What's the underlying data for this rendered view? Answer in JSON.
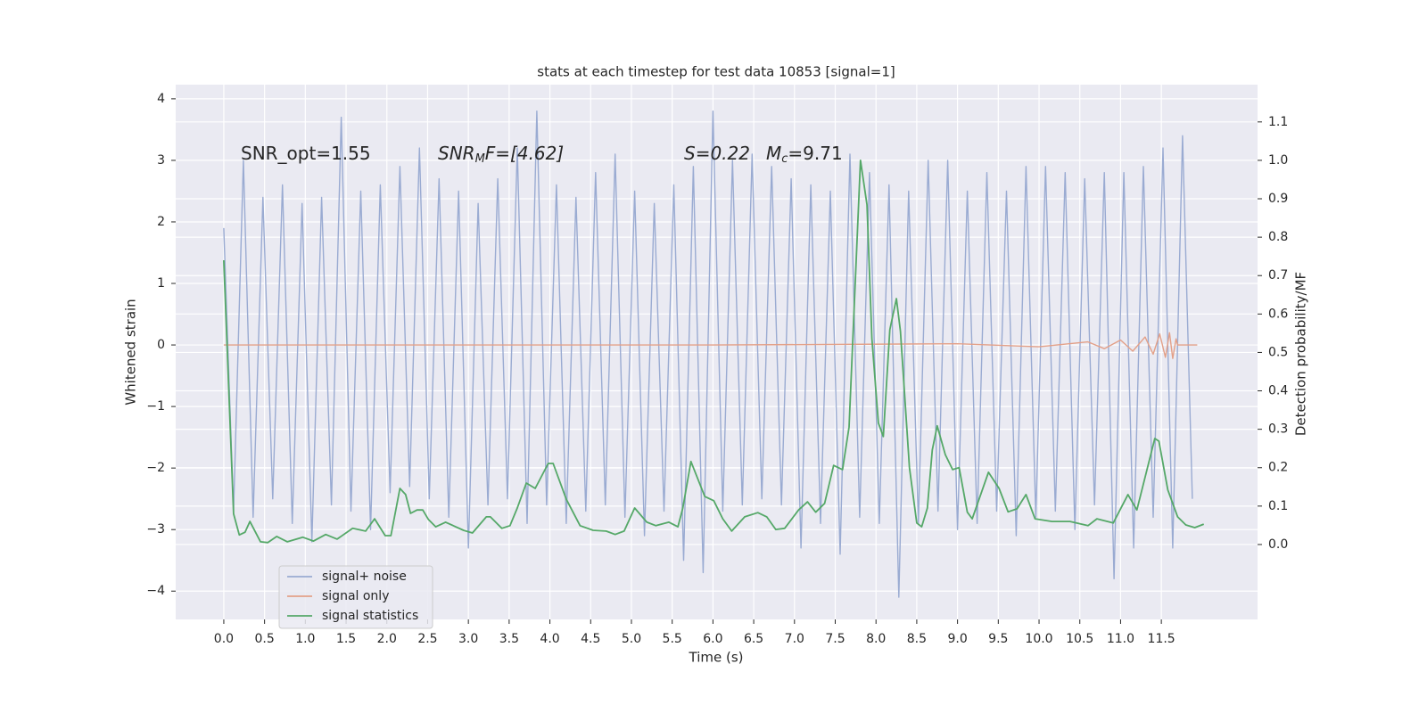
{
  "chart_data": {
    "type": "line",
    "title": "stats at each timestep for test data 10853 [signal=1]",
    "x_label": "Time (s)",
    "y_label": "Whitened strain",
    "y2_label": "Detection probability/MF",
    "annotations": [
      [
        "SNR_opt=1.55"
      ],
      [
        "SNR",
        "M",
        "F=[4.62]"
      ],
      [
        "S=0.22"
      ],
      [
        "M",
        "c",
        "=9.71"
      ]
    ],
    "xlim": [
      -0.59,
      12.68
    ],
    "ylim": [
      -4.46,
      4.23
    ],
    "y2lim": [
      -0.195,
      1.197
    ],
    "xticks": [
      {
        "value": 0,
        "label": "0.0"
      },
      {
        "value": 0.5,
        "label": "0.5"
      },
      {
        "value": 1,
        "label": "1.0"
      },
      {
        "value": 1.5,
        "label": "1.5"
      },
      {
        "value": 2,
        "label": "2.0"
      },
      {
        "value": 2.5,
        "label": "2.5"
      },
      {
        "value": 3,
        "label": "3.0"
      },
      {
        "value": 3.5,
        "label": "3.5"
      },
      {
        "value": 4,
        "label": "4.0"
      },
      {
        "value": 4.5,
        "label": "4.5"
      },
      {
        "value": 5,
        "label": "5.0"
      },
      {
        "value": 5.5,
        "label": "5.5"
      },
      {
        "value": 6,
        "label": "6.0"
      },
      {
        "value": 6.5,
        "label": "6.5"
      },
      {
        "value": 7,
        "label": "7.0"
      },
      {
        "value": 7.5,
        "label": "7.5"
      },
      {
        "value": 8,
        "label": "8.0"
      },
      {
        "value": 8.5,
        "label": "8.5"
      },
      {
        "value": 9,
        "label": "9.0"
      },
      {
        "value": 9.5,
        "label": "9.5"
      },
      {
        "value": 10,
        "label": "10.0"
      },
      {
        "value": 10.5,
        "label": "10.5"
      },
      {
        "value": 11,
        "label": "11.0"
      },
      {
        "value": 11.5,
        "label": "11.5"
      }
    ],
    "yticks": [
      {
        "value": -4,
        "label": "−4"
      },
      {
        "value": -3,
        "label": "−3"
      },
      {
        "value": -2,
        "label": "−2"
      },
      {
        "value": -1,
        "label": "−1"
      },
      0,
      1,
      2,
      3,
      4
    ],
    "y2ticks": [
      {
        "value": 0,
        "label": "0.0"
      },
      {
        "value": 0.1,
        "label": "0.1"
      },
      {
        "value": 0.2,
        "label": "0.2"
      },
      {
        "value": 0.3,
        "label": "0.3"
      },
      {
        "value": 0.4,
        "label": "0.4"
      },
      {
        "value": 0.5,
        "label": "0.5"
      },
      {
        "value": 0.6,
        "label": "0.6"
      },
      {
        "value": 0.7,
        "label": "0.7"
      },
      {
        "value": 0.8,
        "label": "0.8"
      },
      {
        "value": 0.9,
        "label": "0.9"
      },
      {
        "value": 1.0,
        "label": "1.0"
      },
      {
        "value": 1.1,
        "label": "1.1"
      }
    ],
    "grid": true,
    "legend": "lower left",
    "series": [
      {
        "name": "signal+ noise",
        "color": "#9aabd2",
        "x": [
          0,
          0.12,
          0.24,
          0.36,
          0.48,
          0.6,
          0.72,
          0.84,
          0.96,
          1.08,
          1.2,
          1.32,
          1.44,
          1.56,
          1.68,
          1.8,
          1.92,
          2.04,
          2.16,
          2.28,
          2.4,
          2.52,
          2.64,
          2.76,
          2.88,
          3,
          3.12,
          3.24,
          3.36,
          3.48,
          3.6,
          3.72,
          3.84,
          3.96,
          4.08,
          4.2,
          4.32,
          4.44,
          4.56,
          4.68,
          4.8,
          4.92,
          5.04,
          5.16,
          5.28,
          5.4,
          5.52,
          5.64,
          5.76,
          5.88,
          6,
          6.12,
          6.24,
          6.36,
          6.48,
          6.6,
          6.72,
          6.84,
          6.96,
          7.08,
          7.2,
          7.32,
          7.44,
          7.56,
          7.68,
          7.8,
          7.92,
          8.04,
          8.16,
          8.28,
          8.4,
          8.52,
          8.64,
          8.76,
          8.88,
          9,
          9.12,
          9.24,
          9.36,
          9.48,
          9.6,
          9.72,
          9.84,
          9.96,
          10.08,
          10.2,
          10.32,
          10.44,
          10.56,
          10.68,
          10.8,
          10.92,
          11.04,
          11.16,
          11.28,
          11.4,
          11.52,
          11.64,
          11.76,
          11.88
        ],
        "values": [
          1.9,
          -2.7,
          3.0,
          -2.8,
          2.4,
          -2.5,
          2.6,
          -2.9,
          2.3,
          -3.2,
          2.4,
          -2.6,
          3.7,
          -2.7,
          2.5,
          -3.0,
          2.6,
          -2.4,
          2.9,
          -2.3,
          3.2,
          -2.5,
          2.7,
          -2.8,
          2.5,
          -3.3,
          2.3,
          -2.6,
          2.7,
          -2.5,
          3.2,
          -2.9,
          3.8,
          -2.6,
          2.6,
          -2.9,
          2.4,
          -2.7,
          2.8,
          -2.6,
          3.1,
          -2.8,
          2.5,
          -3.1,
          2.3,
          -2.7,
          2.6,
          -3.5,
          2.9,
          -3.7,
          3.8,
          -2.7,
          3.0,
          -2.6,
          3.1,
          -2.5,
          2.9,
          -2.6,
          2.7,
          -3.3,
          2.6,
          -2.9,
          2.5,
          -3.4,
          3.1,
          -2.8,
          2.8,
          -2.9,
          2.6,
          -4.1,
          2.5,
          -2.9,
          3.0,
          -2.7,
          3.0,
          -3.0,
          2.5,
          -2.9,
          2.8,
          -2.7,
          2.5,
          -3.1,
          2.9,
          -2.8,
          2.9,
          -2.7,
          2.8,
          -3.0,
          2.7,
          -2.6,
          2.8,
          -3.8,
          2.8,
          -3.3,
          2.9,
          -2.8,
          3.2,
          -3.3,
          3.4,
          -2.5
        ]
      },
      {
        "name": "signal only",
        "color": "#e3a088",
        "x": [
          0,
          6,
          9,
          10,
          10.6,
          10.8,
          11.0,
          11.15,
          11.3,
          11.4,
          11.48,
          11.55,
          11.6,
          11.64,
          11.68,
          11.7,
          11.94
        ],
        "values": [
          0,
          0,
          0.02,
          -0.03,
          0.05,
          -0.06,
          0.08,
          -0.1,
          0.13,
          -0.15,
          0.18,
          -0.2,
          0.2,
          -0.22,
          0.1,
          0,
          0
        ]
      },
      {
        "name": "signal statistics",
        "color": "#55a868",
        "axis": "y2",
        "x": [
          0,
          0.12,
          0.19,
          0.26,
          0.32,
          0.45,
          0.54,
          0.65,
          0.78,
          0.97,
          1.1,
          1.25,
          1.39,
          1.58,
          1.74,
          1.85,
          1.98,
          2.05,
          2.16,
          2.23,
          2.29,
          2.37,
          2.44,
          2.51,
          2.6,
          2.72,
          2.94,
          3.05,
          3.22,
          3.27,
          3.41,
          3.51,
          3.6,
          3.71,
          3.82,
          3.98,
          4.04,
          4.2,
          4.37,
          4.53,
          4.69,
          4.8,
          4.91,
          5.04,
          5.19,
          5.3,
          5.46,
          5.57,
          5.63,
          5.73,
          5.9,
          6.01,
          6.12,
          6.23,
          6.39,
          6.55,
          6.66,
          6.77,
          6.88,
          7.05,
          7.16,
          7.26,
          7.37,
          7.48,
          7.59,
          7.67,
          7.81,
          7.89,
          7.95,
          8.03,
          8.09,
          8.17,
          8.25,
          8.3,
          8.41,
          8.5,
          8.56,
          8.63,
          8.69,
          8.75,
          8.85,
          8.94,
          9.02,
          9.12,
          9.18,
          9.38,
          9.51,
          9.62,
          9.73,
          9.84,
          9.95,
          10.16,
          10.38,
          10.6,
          10.71,
          10.91,
          11.09,
          11.2,
          11.42,
          11.47,
          11.58,
          11.7,
          11.8,
          11.91,
          12.02
        ],
        "values": [
          0.74,
          0.08,
          0.025,
          0.032,
          0.06,
          0.007,
          0.005,
          0.021,
          0.007,
          0.019,
          0.009,
          0.026,
          0.014,
          0.042,
          0.035,
          0.067,
          0.023,
          0.023,
          0.146,
          0.13,
          0.081,
          0.09,
          0.09,
          0.065,
          0.046,
          0.058,
          0.037,
          0.03,
          0.072,
          0.072,
          0.042,
          0.049,
          0.095,
          0.16,
          0.146,
          0.211,
          0.211,
          0.118,
          0.049,
          0.037,
          0.035,
          0.026,
          0.035,
          0.095,
          0.058,
          0.049,
          0.058,
          0.046,
          0.095,
          0.216,
          0.125,
          0.114,
          0.067,
          0.035,
          0.072,
          0.083,
          0.072,
          0.039,
          0.042,
          0.09,
          0.111,
          0.084,
          0.107,
          0.206,
          0.195,
          0.306,
          1.0,
          0.884,
          0.536,
          0.316,
          0.281,
          0.559,
          0.64,
          0.555,
          0.2,
          0.056,
          0.046,
          0.095,
          0.246,
          0.309,
          0.234,
          0.195,
          0.2,
          0.084,
          0.067,
          0.188,
          0.146,
          0.085,
          0.093,
          0.13,
          0.067,
          0.06,
          0.06,
          0.049,
          0.067,
          0.056,
          0.13,
          0.09,
          0.276,
          0.269,
          0.142,
          0.072,
          0.051,
          0.044,
          0.053
        ]
      }
    ]
  }
}
